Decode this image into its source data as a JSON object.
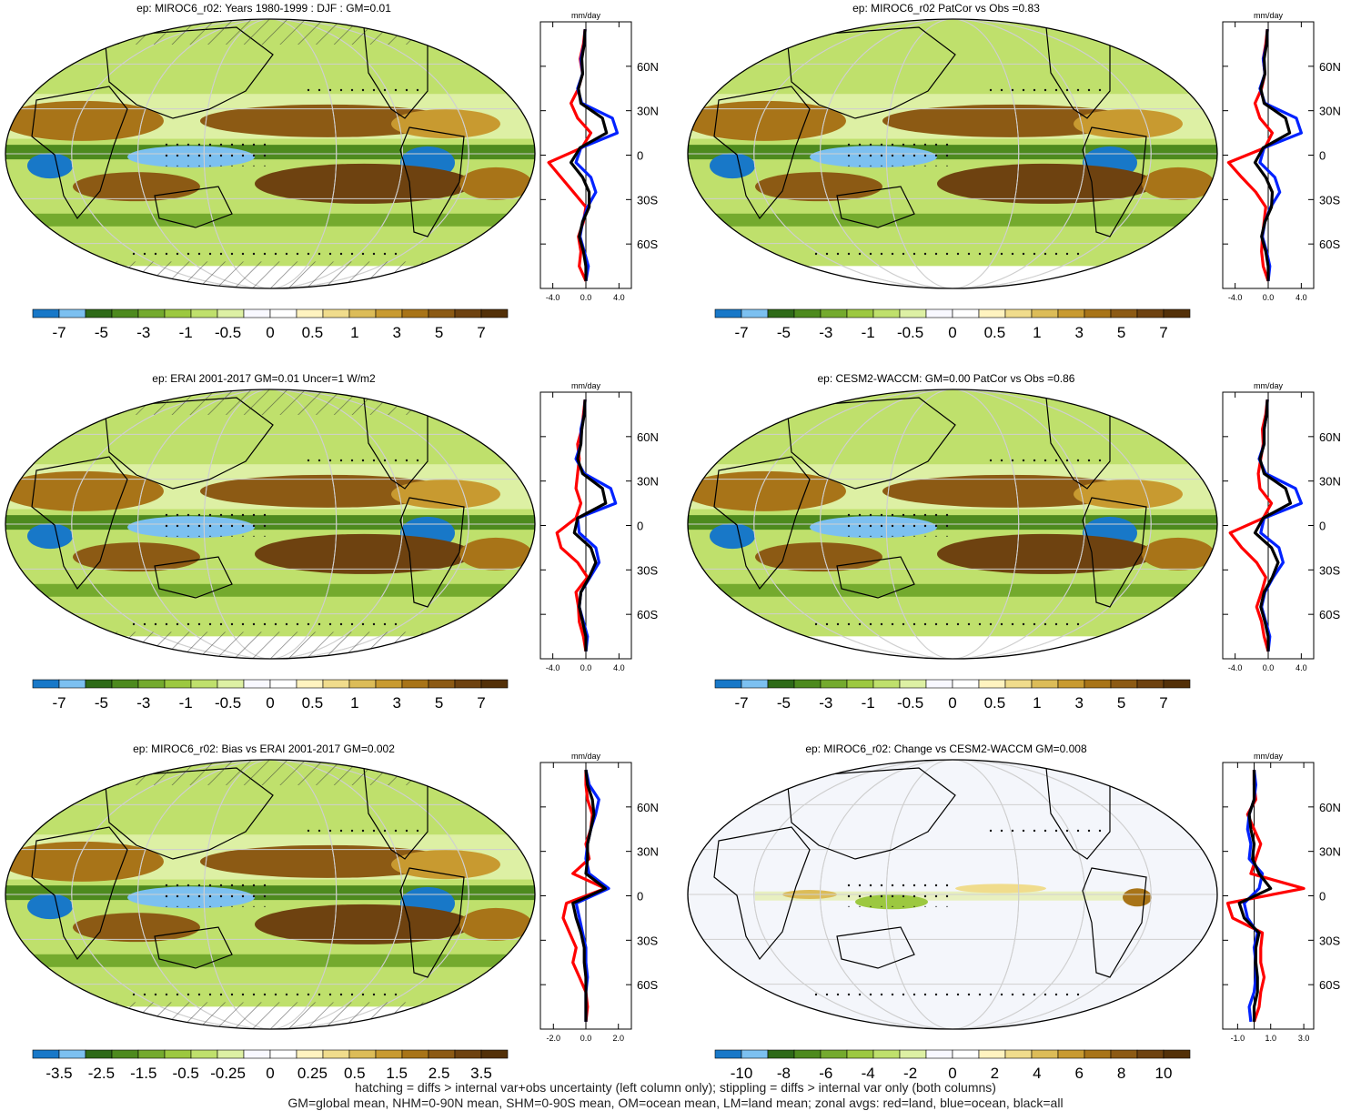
{
  "footer": {
    "line1": "hatching = diffs > internal var+obs uncertainty (left column only); stippling = diffs > internal var only (both columns)",
    "line2": "GM=global mean, NHM=0-90N mean, SHM=0-90S mean, OM=ocean mean, LM=land mean; zonal avgs: red=land, blue=ocean, black=all"
  },
  "colors": {
    "land": "#ff0000",
    "ocean": "#0022ff",
    "all": "#000000",
    "palette": [
      "#1878c8",
      "#7cc0f0",
      "#2e6a18",
      "#4d8a1e",
      "#74aa2e",
      "#9cc840",
      "#bfe06c",
      "#ddf0a4",
      "#f8f8ff",
      "#ffffff",
      "#fff3c0",
      "#f0dc8c",
      "#dcbc58",
      "#c89a30",
      "#a87418",
      "#8c5a14",
      "#6e4210",
      "#533008"
    ]
  },
  "chart_data": [
    {
      "type": "heatmap",
      "title": "ep: MIROC6_r02: Years 1980-1999 : DJF : GM=0.01",
      "colorbar_labels": [
        "-7",
        "-5",
        "-3",
        "-1",
        "-0.5",
        "0",
        "0.5",
        "1",
        "3",
        "5",
        "7"
      ],
      "hatching": true,
      "zonal": {
        "unit": "mm/day",
        "type": "line",
        "xticks": [
          "-4.0",
          "0.0",
          "4.0"
        ],
        "xlim": [
          -5.5,
          5.5
        ],
        "yticks": [
          "60N",
          "30N",
          "0",
          "30S",
          "60S"
        ],
        "ylim": [
          -90,
          90
        ],
        "lat": [
          -85,
          -75,
          -65,
          -55,
          -45,
          -35,
          -25,
          -15,
          -5,
          5,
          15,
          25,
          35,
          45,
          55,
          65,
          75,
          85
        ],
        "series": [
          {
            "role": "land",
            "values": [
              0.0,
              -0.8,
              -0.6,
              -0.9,
              -0.3,
              0.0,
              -1.5,
              -3.0,
              -4.5,
              -0.5,
              0.6,
              -1.0,
              -1.8,
              -0.9,
              -0.4,
              -0.7,
              -0.3,
              -0.1
            ]
          },
          {
            "role": "ocean",
            "values": [
              0.0,
              0.3,
              -0.2,
              -0.7,
              -0.4,
              0.2,
              1.2,
              0.6,
              -1.2,
              -0.6,
              3.8,
              3.2,
              -0.5,
              -1.0,
              -0.4,
              -0.6,
              -0.2,
              -0.1
            ]
          },
          {
            "role": "all",
            "values": [
              0.0,
              0.0,
              -0.3,
              -0.8,
              -0.4,
              0.4,
              0.4,
              -0.4,
              -1.8,
              -0.7,
              2.5,
              2.0,
              -0.6,
              -0.9,
              -0.4,
              -0.5,
              -0.2,
              -0.1
            ]
          }
        ]
      }
    },
    {
      "type": "heatmap",
      "title": "ep: MIROC6_r02 PatCor vs Obs =0.83",
      "colorbar_labels": [
        "-7",
        "-5",
        "-3",
        "-1",
        "-0.5",
        "0",
        "0.5",
        "1",
        "3",
        "5",
        "7"
      ],
      "hatching": false,
      "zonal": {
        "unit": "mm/day",
        "type": "line",
        "xticks": [
          "-4.0",
          "0.0",
          "4.0"
        ],
        "xlim": [
          -5.5,
          5.5
        ],
        "yticks": [
          "60N",
          "30N",
          "0",
          "30S",
          "60S"
        ],
        "ylim": [
          -90,
          90
        ],
        "lat": [
          -85,
          -75,
          -65,
          -55,
          -45,
          -35,
          -25,
          -15,
          -5,
          5,
          15,
          25,
          35,
          45,
          55,
          65,
          75,
          85
        ],
        "series": [
          {
            "role": "land",
            "values": [
              0.0,
              -0.6,
              -0.8,
              -0.7,
              -0.5,
              -0.3,
              -1.5,
              -3.2,
              -4.8,
              -0.4,
              0.5,
              -1.0,
              -1.6,
              -0.8,
              -0.4,
              -0.6,
              -0.3,
              -0.1
            ]
          },
          {
            "role": "ocean",
            "values": [
              0.0,
              0.2,
              -0.2,
              -0.7,
              -0.4,
              0.3,
              1.4,
              0.8,
              -1.0,
              -0.5,
              4.0,
              3.4,
              -0.4,
              -1.0,
              -0.4,
              -0.6,
              -0.2,
              -0.1
            ]
          },
          {
            "role": "all",
            "values": [
              0.0,
              0.0,
              -0.3,
              -0.8,
              -0.4,
              0.4,
              0.5,
              -0.3,
              -1.6,
              -0.6,
              2.6,
              2.1,
              -0.5,
              -0.9,
              -0.4,
              -0.5,
              -0.2,
              -0.1
            ]
          }
        ]
      }
    },
    {
      "type": "heatmap",
      "title": "ep: ERAI 2001-2017 GM=0.01 Uncer=1 W/m2",
      "colorbar_labels": [
        "-7",
        "-5",
        "-3",
        "-1",
        "-0.5",
        "0",
        "0.5",
        "1",
        "3",
        "5",
        "7"
      ],
      "hatching": true,
      "zonal": {
        "unit": "mm/day",
        "type": "line",
        "xticks": [
          "-4.0",
          "0.0",
          "4.0"
        ],
        "xlim": [
          -5.5,
          5.5
        ],
        "yticks": [
          "60N",
          "30N",
          "0",
          "30S",
          "60S"
        ],
        "ylim": [
          -90,
          90
        ],
        "lat": [
          -85,
          -75,
          -65,
          -55,
          -45,
          -35,
          -25,
          -15,
          -5,
          5,
          15,
          25,
          35,
          45,
          55,
          65,
          75,
          85
        ],
        "series": [
          {
            "role": "land",
            "values": [
              0.0,
              -0.3,
              -0.8,
              -0.9,
              -1.2,
              0.2,
              -1.0,
              -3.0,
              -3.5,
              -1.2,
              -0.6,
              -1.2,
              -1.0,
              -0.8,
              -1.0,
              -0.5,
              -0.3,
              -0.1
            ]
          },
          {
            "role": "ocean",
            "values": [
              0.0,
              0.2,
              -0.3,
              -0.8,
              -0.6,
              0.5,
              1.6,
              1.2,
              -0.8,
              -1.0,
              3.6,
              3.0,
              -0.2,
              -1.2,
              -0.6,
              -0.6,
              -0.2,
              -0.1
            ]
          },
          {
            "role": "all",
            "values": [
              0.0,
              0.0,
              -0.4,
              -0.8,
              -0.6,
              0.4,
              1.2,
              0.6,
              -1.4,
              -1.0,
              2.4,
              2.0,
              -0.4,
              -1.0,
              -0.6,
              -0.5,
              -0.2,
              -0.1
            ]
          }
        ]
      }
    },
    {
      "type": "heatmap",
      "title": "ep: CESM2-WACCM: GM=0.00 PatCor vs Obs =0.86",
      "colorbar_labels": [
        "-7",
        "-5",
        "-3",
        "-1",
        "-0.5",
        "0",
        "0.5",
        "1",
        "3",
        "5",
        "7"
      ],
      "hatching": false,
      "zonal": {
        "unit": "mm/day",
        "type": "line",
        "xticks": [
          "-4.0",
          "0.0",
          "4.0"
        ],
        "xlim": [
          -5.5,
          5.5
        ],
        "yticks": [
          "60N",
          "30N",
          "0",
          "30S",
          "60S"
        ],
        "ylim": [
          -90,
          90
        ],
        "lat": [
          -85,
          -75,
          -65,
          -55,
          -45,
          -35,
          -25,
          -15,
          -5,
          5,
          15,
          25,
          35,
          45,
          55,
          65,
          75,
          85
        ],
        "series": [
          {
            "role": "land",
            "values": [
              0.0,
              -0.5,
              -0.8,
              -1.4,
              -0.8,
              -0.3,
              -1.4,
              -3.2,
              -4.6,
              -0.6,
              0.4,
              -1.0,
              -1.2,
              -0.9,
              -0.6,
              -0.7,
              -0.3,
              -0.1
            ]
          },
          {
            "role": "ocean",
            "values": [
              0.0,
              0.2,
              -0.3,
              -0.8,
              -0.4,
              0.6,
              1.8,
              1.3,
              -0.9,
              -0.5,
              4.0,
              3.3,
              -0.3,
              -1.1,
              -0.5,
              -0.5,
              -0.2,
              -0.1
            ]
          },
          {
            "role": "all",
            "values": [
              0.0,
              0.0,
              -0.4,
              -0.9,
              -0.5,
              0.5,
              1.2,
              0.4,
              -1.6,
              -0.6,
              2.7,
              2.1,
              -0.5,
              -1.0,
              -0.5,
              -0.5,
              -0.2,
              -0.1
            ]
          }
        ]
      }
    },
    {
      "type": "heatmap",
      "title": "ep: MIROC6_r02: Bias vs ERAI 2001-2017 GM=0.002",
      "colorbar_labels": [
        "-3.5",
        "-2.5",
        "-1.5",
        "-0.5",
        "-0.25",
        "0",
        "0.25",
        "0.5",
        "1.5",
        "2.5",
        "3.5"
      ],
      "hatching": true,
      "zonal": {
        "unit": "mm/day",
        "type": "line",
        "xticks": [
          "-2.0",
          "0.0",
          "2.0"
        ],
        "xlim": [
          -2.8,
          2.8
        ],
        "yticks": [
          "60N",
          "30N",
          "0",
          "30S",
          "60S"
        ],
        "ylim": [
          -90,
          90
        ],
        "lat": [
          -85,
          -75,
          -65,
          -55,
          -45,
          -35,
          -25,
          -15,
          -5,
          5,
          15,
          25,
          35,
          45,
          55,
          65,
          75,
          85
        ],
        "series": [
          {
            "role": "land",
            "values": [
              0.0,
              0.1,
              0.0,
              -0.4,
              -0.8,
              -0.6,
              -1.0,
              -1.4,
              -1.2,
              1.2,
              -0.8,
              0.2,
              0.0,
              0.3,
              0.4,
              0.1,
              0.0,
              0.0
            ]
          },
          {
            "role": "ocean",
            "values": [
              0.0,
              0.0,
              0.0,
              0.1,
              0.0,
              0.0,
              -0.2,
              -0.4,
              -0.6,
              1.4,
              0.2,
              0.0,
              0.1,
              0.3,
              0.6,
              0.8,
              0.2,
              0.0
            ]
          },
          {
            "role": "all",
            "values": [
              0.0,
              0.0,
              0.0,
              0.0,
              -0.1,
              -0.1,
              -0.3,
              -0.6,
              -0.8,
              1.2,
              0.0,
              0.1,
              0.1,
              0.3,
              0.5,
              0.4,
              0.1,
              0.0
            ]
          }
        ]
      }
    },
    {
      "type": "heatmap",
      "title": "ep: MIROC6_r02: Change vs CESM2-WACCM GM=0.008",
      "colorbar_labels": [
        "-10",
        "-8",
        "-6",
        "-4",
        "-2",
        "0",
        "2",
        "4",
        "6",
        "8",
        "10"
      ],
      "hatching": false,
      "zonal": {
        "unit": "mm/day",
        "type": "line",
        "xticks": [
          "-1.0",
          "1.0",
          "3.0"
        ],
        "xlim": [
          -1.9,
          3.6
        ],
        "yticks": [
          "60N",
          "30N",
          "0",
          "30S",
          "60S"
        ],
        "ylim": [
          -90,
          90
        ],
        "lat": [
          -85,
          -75,
          -65,
          -55,
          -45,
          -35,
          -25,
          -15,
          -5,
          5,
          15,
          25,
          35,
          45,
          55,
          65,
          75,
          85
        ],
        "series": [
          {
            "role": "land",
            "values": [
              0.0,
              0.3,
              0.4,
              0.6,
              0.4,
              0.4,
              0.5,
              -1.3,
              -1.6,
              3.0,
              -0.2,
              0.1,
              0.4,
              0.0,
              -0.4,
              0.1,
              0.0,
              0.0
            ]
          },
          {
            "role": "ocean",
            "values": [
              -0.2,
              -0.3,
              0.0,
              0.1,
              0.1,
              0.0,
              0.2,
              -0.4,
              -0.6,
              0.3,
              0.5,
              -0.3,
              -0.2,
              -0.4,
              -0.3,
              0.0,
              0.1,
              0.0
            ]
          },
          {
            "role": "all",
            "values": [
              0.0,
              0.0,
              0.2,
              0.2,
              0.1,
              0.1,
              0.3,
              -0.6,
              -0.9,
              1.0,
              0.3,
              -0.1,
              0.0,
              -0.2,
              -0.3,
              0.0,
              0.0,
              0.0
            ]
          }
        ]
      }
    }
  ]
}
